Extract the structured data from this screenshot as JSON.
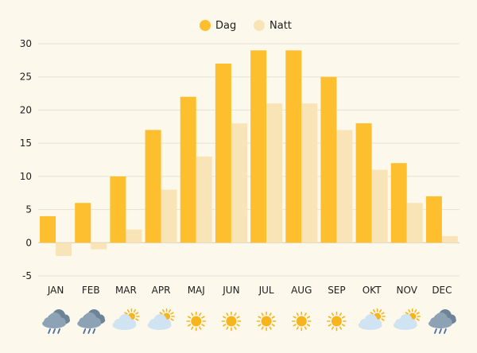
{
  "chart_data": {
    "type": "bar",
    "title": "",
    "xlabel": "",
    "ylabel": "",
    "ylim": [
      -5,
      30
    ],
    "y_ticks": [
      -5,
      0,
      5,
      10,
      15,
      20,
      25,
      30
    ],
    "grid": true,
    "legend_position": "top-center",
    "categories": [
      "JAN",
      "FEB",
      "MAR",
      "APR",
      "MAJ",
      "JUN",
      "JUL",
      "AUG",
      "SEP",
      "OKT",
      "NOV",
      "DEC"
    ],
    "series": [
      {
        "name": "Dag",
        "color": "#fdbf2d",
        "values": [
          4,
          6,
          10,
          17,
          22,
          27,
          29,
          29,
          25,
          18,
          12,
          7
        ]
      },
      {
        "name": "Natt",
        "color": "#f9e4b7",
        "values": [
          -2,
          -1,
          2,
          8,
          13,
          18,
          21,
          21,
          17,
          11,
          6,
          1
        ]
      }
    ],
    "weather_icons": [
      "rain-cloud-icon",
      "rain-cloud-icon",
      "partly-cloudy-icon",
      "partly-cloudy-icon",
      "sun-icon",
      "sun-icon",
      "sun-icon",
      "sun-icon",
      "sun-icon",
      "partly-cloudy-icon",
      "partly-cloudy-icon",
      "rain-cloud-icon"
    ]
  },
  "colors": {
    "background": "#fdf8ec",
    "grid": "#e6e2d6",
    "zero_line": "#cfcab9",
    "text": "#1e1e1e",
    "sun": "#f8b41c",
    "cloud": "#cfe3f2",
    "rain_cloud": "#8ea2b6",
    "rain": "#4a6fa5"
  }
}
